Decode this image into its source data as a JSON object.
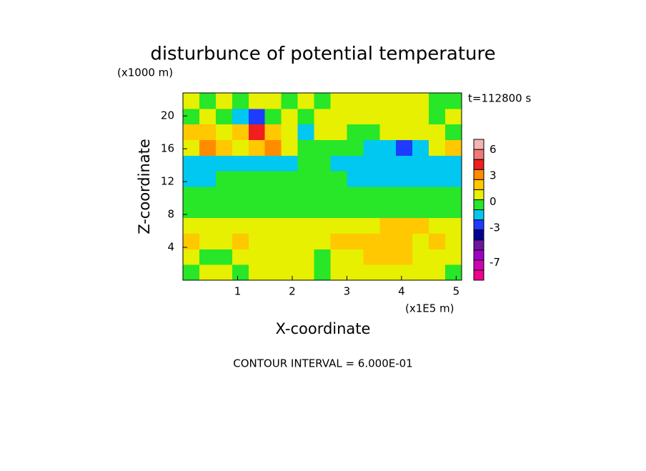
{
  "chart_data": {
    "type": "contour",
    "title": "disturbunce of potential temperature",
    "y_unit": "(x1000 m)",
    "x_unit": "(x1E5 m)",
    "time_label": "t=112800 s",
    "xlabel": "X-coordinate",
    "ylabel": "Z-coordinate",
    "footer": "CONTOUR INTERVAL = 6.000E-01",
    "xlim": [
      0,
      5.1
    ],
    "ylim": [
      0,
      22.8
    ],
    "xticks": [
      1,
      2,
      3,
      4,
      5
    ],
    "yticks": [
      4,
      8,
      12,
      16,
      20
    ],
    "x": [
      0.15,
      0.45,
      0.75,
      1.05,
      1.35,
      1.65,
      1.95,
      2.25,
      2.55,
      2.85,
      3.15,
      3.45,
      3.75,
      4.05,
      4.35,
      4.65,
      4.95
    ],
    "y": [
      0.95,
      2.85,
      4.75,
      6.65,
      8.55,
      10.45,
      12.35,
      14.25,
      16.15,
      18.05,
      19.95,
      21.85
    ],
    "z": [
      [
        -0.3,
        0.8,
        0.8,
        -0.3,
        0.8,
        0.8,
        0.8,
        0.8,
        -0.3,
        0.8,
        0.8,
        0.8,
        0.8,
        0.8,
        0.8,
        0.8,
        -0.3
      ],
      [
        0.8,
        -0.3,
        -0.3,
        0.8,
        0.8,
        0.8,
        0.8,
        0.8,
        -0.3,
        0.8,
        0.8,
        2,
        2,
        2,
        0.8,
        0.8,
        0.8
      ],
      [
        2,
        0.8,
        0.8,
        2,
        0.8,
        0.8,
        0.8,
        0.8,
        0.8,
        2,
        2,
        2,
        2,
        2,
        0.8,
        2,
        0.8
      ],
      [
        0.8,
        0.8,
        0.8,
        0.8,
        0.8,
        0.8,
        0.8,
        0.8,
        0.8,
        0.8,
        0.8,
        0.8,
        2,
        2,
        2,
        0.8,
        0.8
      ],
      [
        -0.3,
        -0.3,
        -0.3,
        -0.3,
        -0.3,
        -0.3,
        -0.3,
        -0.3,
        -0.3,
        -0.3,
        -0.3,
        -0.3,
        -0.3,
        -0.3,
        -0.3,
        -0.3,
        -0.3
      ],
      [
        -0.3,
        -0.3,
        -0.3,
        -0.3,
        -0.3,
        -0.3,
        -0.3,
        -0.3,
        -0.3,
        -0.3,
        -0.3,
        -0.3,
        -0.3,
        -0.3,
        -0.3,
        -0.3,
        -0.3
      ],
      [
        -1.5,
        -1.5,
        -0.3,
        -0.3,
        -0.3,
        -0.3,
        -0.3,
        -0.3,
        -0.3,
        -0.3,
        -1.5,
        -1.5,
        -1.5,
        -1.5,
        -1.5,
        -1.5,
        -1.5
      ],
      [
        -1.5,
        -1.5,
        -1.5,
        -1.5,
        -1.5,
        -1.5,
        -1.5,
        -0.3,
        -0.3,
        -1.5,
        -1.5,
        -1.5,
        -1.5,
        -1.5,
        -1.5,
        -1.5,
        -1.5
      ],
      [
        0.8,
        3,
        2,
        0.8,
        2,
        3,
        0.8,
        -0.3,
        -0.3,
        -0.3,
        -0.3,
        -1.5,
        -1.5,
        -2.5,
        -1.5,
        0.8,
        2
      ],
      [
        2,
        2,
        0.8,
        2,
        4.2,
        2,
        0.8,
        -1.5,
        0.8,
        0.8,
        -0.3,
        -0.3,
        0.8,
        0.8,
        0.8,
        0.8,
        -0.3
      ],
      [
        -0.3,
        0.8,
        -0.3,
        -1.5,
        -2.5,
        -0.3,
        0.8,
        -0.3,
        0.8,
        0.8,
        0.8,
        0.8,
        0.8,
        0.8,
        0.8,
        -0.3,
        0.8
      ],
      [
        0.8,
        -0.3,
        0.8,
        -0.3,
        0.8,
        0.8,
        -0.3,
        0.8,
        -0.3,
        0.8,
        0.8,
        0.8,
        0.8,
        0.8,
        0.8,
        -0.3,
        -0.3
      ]
    ],
    "clim": [
      -9,
      7.2
    ],
    "colors": [
      "#f0008c",
      "#d200b4",
      "#a000c8",
      "#6e14a0",
      "#000096",
      "#1e3cff",
      "#00c8f0",
      "#28e628",
      "#e6f000",
      "#ffc800",
      "#ff8c00",
      "#f01e1e",
      "#f07878",
      "#f5b4b4"
    ],
    "cbar_ticks": [
      6,
      3,
      0,
      -3,
      -7
    ]
  }
}
